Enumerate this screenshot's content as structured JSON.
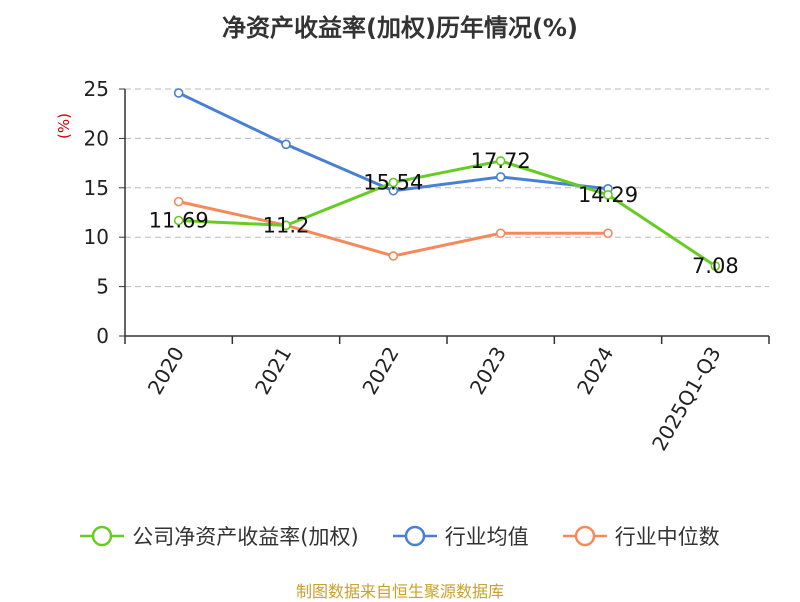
{
  "chart_data": {
    "type": "line",
    "title": "净资产收益率(加权)历年情况(%)",
    "ylabel": "(%)",
    "xlabel": "",
    "categories": [
      "2020",
      "2021",
      "2022",
      "2023",
      "2024",
      "2025Q1-Q3"
    ],
    "ylim": [
      0,
      25
    ],
    "yticks": [
      0,
      5,
      10,
      15,
      20,
      25
    ],
    "grid": true,
    "legend_position": "bottom",
    "series": [
      {
        "name": "公司净资产收益率(加权)",
        "color": "#66cc22",
        "values": [
          11.69,
          11.2,
          15.54,
          17.72,
          14.29,
          7.08
        ],
        "labels": [
          "11.69",
          "11.2",
          "15.54",
          "17.72",
          "14.29",
          "7.08"
        ]
      },
      {
        "name": "行业均值",
        "color": "#4a7fd6",
        "values": [
          24.6,
          19.4,
          14.7,
          16.1,
          14.9,
          null
        ]
      },
      {
        "name": "行业中位数",
        "color": "#f5895a",
        "values": [
          13.6,
          11.2,
          8.1,
          10.4,
          10.4,
          null
        ]
      }
    ]
  },
  "source_note": "制图数据来自恒生聚源数据库"
}
